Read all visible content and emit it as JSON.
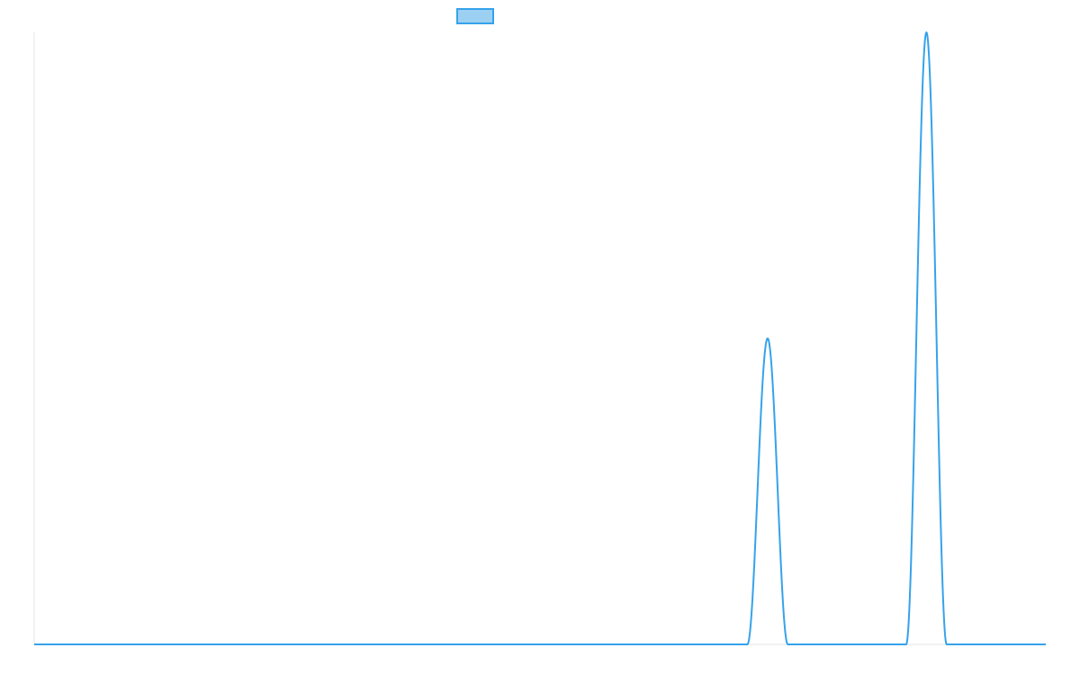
{
  "chart_data": {
    "type": "line",
    "title": "",
    "xlabel": "",
    "ylabel": "",
    "legend": {
      "placement": "top-center",
      "entries": [
        {
          "label": "",
          "swatch_fill": "#9cd0f3",
          "swatch_stroke": "#36a2eb"
        }
      ]
    },
    "grid": false,
    "xlim": [
      0,
      1000
    ],
    "ylim": [
      0,
      100
    ],
    "series": [
      {
        "color": "#36a2eb",
        "peaks": [
          {
            "center": 725,
            "height": 50,
            "halfwidth": 20
          },
          {
            "center": 882,
            "height": 100,
            "halfwidth": 20
          }
        ]
      }
    ]
  }
}
